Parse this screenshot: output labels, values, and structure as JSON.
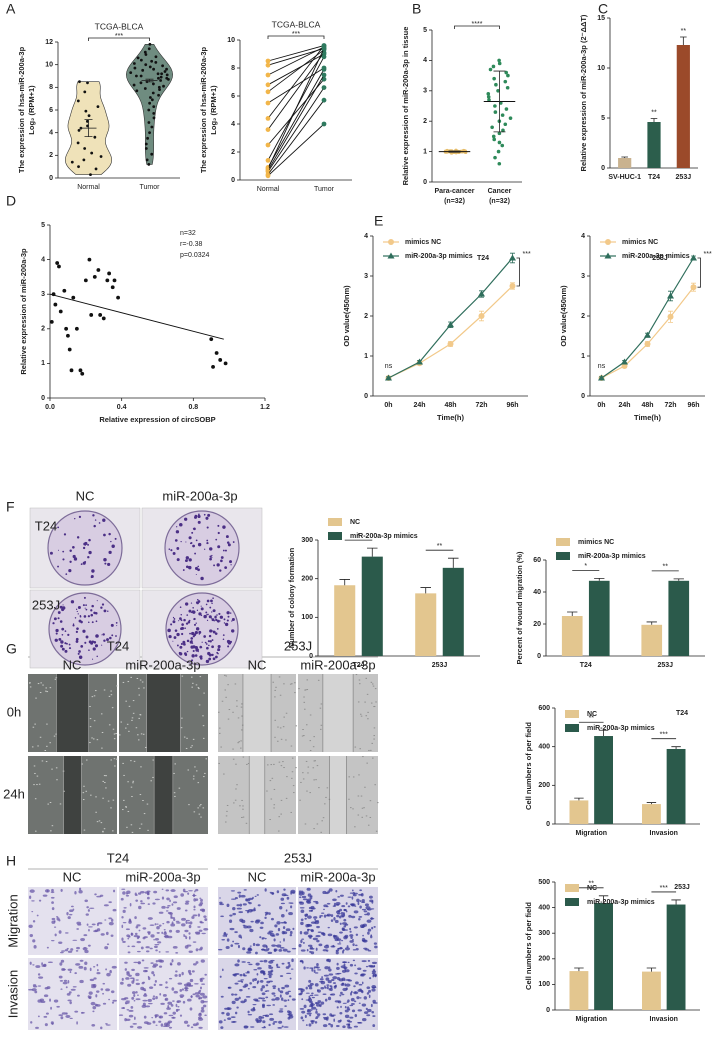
{
  "panel_labels": [
    "A",
    "B",
    "C",
    "D",
    "E",
    "F",
    "G",
    "H"
  ],
  "images": {
    "F": {
      "columns": [
        "NC",
        "miR-200a-3p"
      ],
      "rows": [
        "T24",
        "253J"
      ]
    },
    "G": {
      "groups": [
        "T24",
        "253J"
      ],
      "columns": [
        "NC",
        "miR-200a-3p",
        "NC",
        "miR-200a-3p"
      ],
      "rows": [
        "0h",
        "24h"
      ]
    },
    "H": {
      "groups": [
        "T24",
        "253J"
      ],
      "columns": [
        "NC",
        "miR-200a-3p",
        "NC",
        "miR-200a-3p"
      ],
      "rows": [
        "Migration",
        "Invasion"
      ]
    }
  },
  "chart_data": [
    {
      "type": "violin",
      "title": "TCGA-BLCA",
      "categories": [
        "Normal",
        "Tumor"
      ],
      "points": [
        [
          8.5,
          8.4,
          7.6,
          6.8,
          6.3,
          5.9,
          5.5,
          5.0,
          4.6,
          4.4,
          4.2,
          3.6,
          3.1,
          2.6,
          2.2,
          1.9,
          1.6,
          1.4,
          1.0,
          0.8,
          0.3
        ],
        [
          11.8,
          11.4,
          11.1,
          10.9,
          10.7,
          10.6,
          10.4,
          10.3,
          10.2,
          10.1,
          10.0,
          9.9,
          9.8,
          9.7,
          9.6,
          9.6,
          9.5,
          9.4,
          9.3,
          9.2,
          9.2,
          9.1,
          9.0,
          9.0,
          8.9,
          8.8,
          8.8,
          8.7,
          8.6,
          8.5,
          8.4,
          8.3,
          8.2,
          8.1,
          8.0,
          7.9,
          7.8,
          7.7,
          7.5,
          7.3,
          7.1,
          6.9,
          6.6,
          6.3,
          6.0,
          5.7,
          5.3,
          4.9,
          4.5,
          4.0,
          3.5,
          3.0,
          2.6,
          2.1,
          1.6,
          1.2
        ]
      ],
      "mean": [
        4.4,
        8.6
      ],
      "sem": [
        0.75,
        0.12
      ],
      "colors": [
        "#efe2b9",
        "#6f8c80"
      ],
      "significance": "***",
      "ylabel": [
        "The expression of hsa-miR-200a-3p",
        "Log₂ (RPM+1)"
      ],
      "ylim": [
        0,
        12
      ],
      "yticks": [
        0,
        2,
        4,
        6,
        8,
        10,
        12
      ]
    },
    {
      "type": "paired",
      "title": "TCGA-BLCA",
      "categories": [
        "Normal",
        "Tumor"
      ],
      "pairs": [
        [
          8.5,
          9.6
        ],
        [
          8.2,
          9.4
        ],
        [
          7.5,
          9.5
        ],
        [
          6.8,
          9.0
        ],
        [
          6.3,
          9.3
        ],
        [
          5.5,
          8.0
        ],
        [
          4.4,
          9.6
        ],
        [
          3.6,
          9.1
        ],
        [
          2.5,
          7.2
        ],
        [
          1.4,
          8.8
        ],
        [
          0.9,
          7.9
        ],
        [
          0.8,
          9.4
        ],
        [
          0.7,
          7.5
        ],
        [
          0.6,
          6.6
        ],
        [
          0.4,
          5.7
        ],
        [
          0.3,
          4.0
        ]
      ],
      "colors": [
        "#f2b64a",
        "#2f7a5f"
      ],
      "significance": "***",
      "ylabel": [
        "The expression of hsa-miR-200a-3p",
        "Log₂ (RPM+1)"
      ],
      "ylim": [
        0,
        10
      ],
      "yticks": [
        0,
        2,
        4,
        6,
        8,
        10
      ]
    },
    {
      "type": "strip",
      "categories": [
        "Para-cancer",
        "Cancer"
      ],
      "category_notes": [
        "(n=32)",
        "(n=32)"
      ],
      "points": [
        [
          1.0,
          1.02,
          0.98,
          1.01,
          0.99,
          1.03,
          0.97,
          1.0,
          1.02,
          0.99,
          1.01,
          0.98,
          1.0,
          1.04,
          0.96,
          1.01,
          1.0,
          0.99,
          1.02,
          0.98,
          1.0,
          1.01,
          0.97,
          1.03,
          1.0,
          0.99,
          1.02,
          0.98,
          1.01,
          1.0,
          0.99,
          1.0
        ],
        [
          4.0,
          3.9,
          3.8,
          3.7,
          3.6,
          3.5,
          3.4,
          3.3,
          3.2,
          3.1,
          3.0,
          2.9,
          2.8,
          2.7,
          2.6,
          2.5,
          2.4,
          2.3,
          2.2,
          2.1,
          2.0,
          1.9,
          1.8,
          1.7,
          1.6,
          1.5,
          1.4,
          1.3,
          1.2,
          1.0,
          0.8,
          0.6
        ]
      ],
      "mean": [
        1.0,
        2.65
      ],
      "sd": [
        0.02,
        1.0
      ],
      "colors": [
        "#e6bd6a",
        "#2e8a5a"
      ],
      "significance": "****",
      "ylabel": "Relative expression of miR-200a-3p  in tissue",
      "ylim": [
        0,
        5
      ],
      "yticks": [
        0,
        1,
        2,
        3,
        4,
        5
      ]
    },
    {
      "type": "bar",
      "categories": [
        "SV-HUC-1",
        "T24",
        "253J"
      ],
      "values": [
        1.0,
        4.6,
        12.3
      ],
      "errors": [
        0.1,
        0.35,
        0.8
      ],
      "colors": [
        "#c9b28f",
        "#2c5e4c",
        "#9b4a2a"
      ],
      "significance": [
        null,
        "**",
        "**"
      ],
      "ylabel": "Relative expression of miR-200a-3p (2⁻ΔΔT)",
      "ylim": [
        0,
        15
      ],
      "yticks": [
        0,
        5,
        10,
        15
      ]
    },
    {
      "type": "scatter",
      "x": [
        0.01,
        0.02,
        0.03,
        0.04,
        0.05,
        0.06,
        0.08,
        0.09,
        0.1,
        0.11,
        0.12,
        0.13,
        0.15,
        0.17,
        0.18,
        0.2,
        0.22,
        0.23,
        0.25,
        0.27,
        0.28,
        0.3,
        0.32,
        0.33,
        0.35,
        0.36,
        0.38,
        0.9,
        0.91,
        0.93,
        0.95,
        0.98
      ],
      "y": [
        2.2,
        3.0,
        2.7,
        3.9,
        3.8,
        2.5,
        3.1,
        2.0,
        1.8,
        1.4,
        0.8,
        2.9,
        2.0,
        0.8,
        0.7,
        3.4,
        4.0,
        2.4,
        3.5,
        3.7,
        2.4,
        2.3,
        3.4,
        3.6,
        3.2,
        3.4,
        2.9,
        1.7,
        0.9,
        1.3,
        1.1,
        1.0
      ],
      "color": "#111111",
      "trendline": {
        "x": [
          0,
          0.97
        ],
        "y": [
          3.0,
          1.7
        ]
      },
      "annotations": [
        "n=32",
        "r=-0.38",
        "p=0.0324"
      ],
      "xlabel": "Relative expression of circSOBP",
      "ylabel": "Relative expression of miR-200a-3p",
      "xlim": [
        0,
        1.2
      ],
      "xticks": [
        {
          "value": 0,
          "label": "0.0"
        },
        {
          "value": 0.4,
          "label": "0.4"
        },
        {
          "value": 0.8,
          "label": "0.8"
        },
        1.2
      ],
      "ylim": [
        0,
        5
      ],
      "yticks": [
        0,
        1,
        2,
        3,
        4,
        5
      ]
    },
    {
      "type": "line",
      "title": "T24",
      "categories": [
        "0h",
        "24h",
        "48h",
        "72h",
        "96h"
      ],
      "series": [
        {
          "name": "mimics NC",
          "color": "#f2c98a",
          "marker": "circle",
          "values": [
            0.45,
            0.82,
            1.3,
            2.0,
            2.75
          ],
          "errors": [
            0.03,
            0.04,
            0.06,
            0.12,
            0.08
          ]
        },
        {
          "name": "miR-200a-3p mimics",
          "color": "#2f6e5c",
          "marker": "triangle",
          "values": [
            0.45,
            0.85,
            1.78,
            2.55,
            3.45
          ],
          "errors": [
            0.03,
            0.04,
            0.07,
            0.08,
            0.12
          ]
        }
      ],
      "significance": [
        "ns",
        null,
        null,
        null,
        "***"
      ],
      "legend": "top-left",
      "xlabel": "Time(h)",
      "ylabel": "OD value(450nm)",
      "ylim": [
        0,
        4
      ],
      "yticks": [
        0,
        1,
        2,
        3,
        4
      ]
    },
    {
      "type": "line",
      "title": "253J",
      "categories": [
        "0h",
        "24h",
        "48h",
        "72h",
        "96h"
      ],
      "series": [
        {
          "name": "mimics NC",
          "color": "#f2c98a",
          "marker": "circle",
          "values": [
            0.45,
            0.75,
            1.3,
            1.98,
            2.72
          ],
          "errors": [
            0.03,
            0.04,
            0.06,
            0.14,
            0.1
          ]
        },
        {
          "name": "miR-200a-3p mimics",
          "color": "#2f6e5c",
          "marker": "triangle",
          "values": [
            0.45,
            0.85,
            1.52,
            2.5,
            3.45
          ],
          "errors": [
            0.03,
            0.04,
            0.05,
            0.12,
            0.05
          ]
        }
      ],
      "significance": [
        "ns",
        null,
        null,
        null,
        "***"
      ],
      "legend": "top-left",
      "xlabel": "Time(h)",
      "ylabel": "OD value(450nm)",
      "ylim": [
        0,
        4
      ],
      "yticks": [
        0,
        1,
        2,
        3,
        4
      ]
    },
    {
      "type": "bar",
      "categories": [
        "T24",
        "253J"
      ],
      "series": [
        {
          "name": "NC",
          "color": "#e3c68f",
          "values": [
            183,
            162
          ],
          "errors": [
            15,
            15
          ]
        },
        {
          "name": "miR-200a-3p mimics",
          "color": "#2b5a4b",
          "values": [
            257,
            228
          ],
          "errors": [
            22,
            25
          ]
        }
      ],
      "significance": [
        "*",
        "**"
      ],
      "legend": "above",
      "ylabel": "Number of colony formation",
      "ylim": [
        0,
        300
      ],
      "yticks": [
        0,
        100,
        200,
        300
      ]
    },
    {
      "type": "bar",
      "categories": [
        "T24",
        "253J"
      ],
      "series": [
        {
          "name": "mimics NC",
          "color": "#e3c68f",
          "values": [
            25,
            19.5
          ],
          "errors": [
            2.5,
            1.8
          ]
        },
        {
          "name": "miR-200a-3p mimics",
          "color": "#2b5a4b",
          "values": [
            47,
            47
          ],
          "errors": [
            1.5,
            1.2
          ]
        }
      ],
      "significance": [
        "*",
        "**"
      ],
      "legend": "above",
      "ylabel": "Percent of wound migration (%)",
      "ylim": [
        0,
        60
      ],
      "yticks": [
        0,
        20,
        40,
        60
      ]
    },
    {
      "type": "bar",
      "title": "T24",
      "categories": [
        "Migration",
        "Invasion"
      ],
      "series": [
        {
          "name": "NC",
          "color": "#e3c68f",
          "values": [
            122,
            103
          ],
          "errors": [
            12,
            8
          ]
        },
        {
          "name": "miR-200a-3p mimics",
          "color": "#2b5a4b",
          "values": [
            455,
            388
          ],
          "errors": [
            30,
            12
          ]
        }
      ],
      "significance": [
        "**",
        "***"
      ],
      "legend": "top-left",
      "ylabel": "Cell numbers of per field",
      "ylim": [
        0,
        600
      ],
      "yticks": [
        0,
        200,
        400,
        600
      ]
    },
    {
      "type": "bar",
      "title": "253J",
      "categories": [
        "Migration",
        "Invasion"
      ],
      "series": [
        {
          "name": "NC",
          "color": "#e3c68f",
          "values": [
            152,
            150
          ],
          "errors": [
            12,
            14
          ]
        },
        {
          "name": "miR-200a-3p mimics",
          "color": "#2b5a4b",
          "values": [
            418,
            412
          ],
          "errors": [
            28,
            18
          ]
        }
      ],
      "significance": [
        "**",
        "***"
      ],
      "legend": "top-left",
      "ylabel": "Cell numbers of per field",
      "ylim": [
        0,
        500
      ],
      "yticks": [
        0,
        100,
        200,
        300,
        400,
        500
      ]
    }
  ]
}
